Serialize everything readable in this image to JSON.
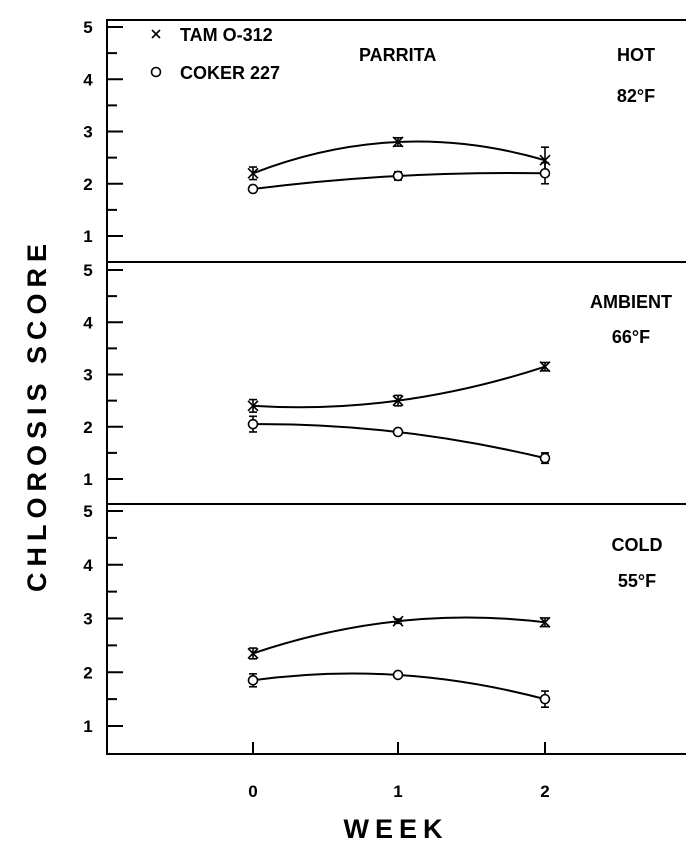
{
  "chart_data": {
    "type": "line",
    "ylabel": "CHLOROSIS SCORE",
    "xlabel": "WEEK",
    "x": [
      0,
      1,
      2
    ],
    "x_ticks": [
      "0",
      "1",
      "2"
    ],
    "ylim": [
      0.5,
      5
    ],
    "y_ticks": [
      "1",
      "2",
      "3",
      "4",
      "5"
    ],
    "legend": {
      "location": "top-left",
      "entries": [
        {
          "symbol": "×",
          "label": "TAM O-312",
          "marker": "x"
        },
        {
          "symbol": "○",
          "label": "COKER 227",
          "marker": "o"
        }
      ]
    },
    "title": "PARRITA",
    "panels": [
      {
        "name": "hot",
        "label_line1": "HOT",
        "label_line2": "82°F",
        "series": [
          {
            "name": "TAM O-312",
            "marker": "x",
            "values": [
              2.2,
              2.8,
              2.45
            ],
            "errors": [
              0.12,
              0.08,
              0.25
            ]
          },
          {
            "name": "COKER 227",
            "marker": "o",
            "values": [
              1.9,
              2.15,
              2.2
            ],
            "errors": [
              0.05,
              0.08,
              0.2
            ]
          }
        ]
      },
      {
        "name": "ambient",
        "label_line1": "AMBIENT",
        "label_line2": "66°F",
        "series": [
          {
            "name": "TAM O-312",
            "marker": "x",
            "values": [
              2.4,
              2.5,
              3.15
            ],
            "errors": [
              0.12,
              0.1,
              0.08
            ]
          },
          {
            "name": "COKER 227",
            "marker": "o",
            "values": [
              2.05,
              1.9,
              1.4
            ],
            "errors": [
              0.15,
              0.05,
              0.1
            ]
          }
        ]
      },
      {
        "name": "cold",
        "label_line1": "COLD",
        "label_line2": "55°F",
        "series": [
          {
            "name": "TAM O-312",
            "marker": "x",
            "values": [
              2.35,
              2.95,
              2.93
            ],
            "errors": [
              0.1,
              0.04,
              0.08
            ]
          },
          {
            "name": "COKER 227",
            "marker": "o",
            "values": [
              1.85,
              1.95,
              1.5
            ],
            "errors": [
              0.12,
              0.04,
              0.15
            ]
          }
        ]
      }
    ]
  }
}
